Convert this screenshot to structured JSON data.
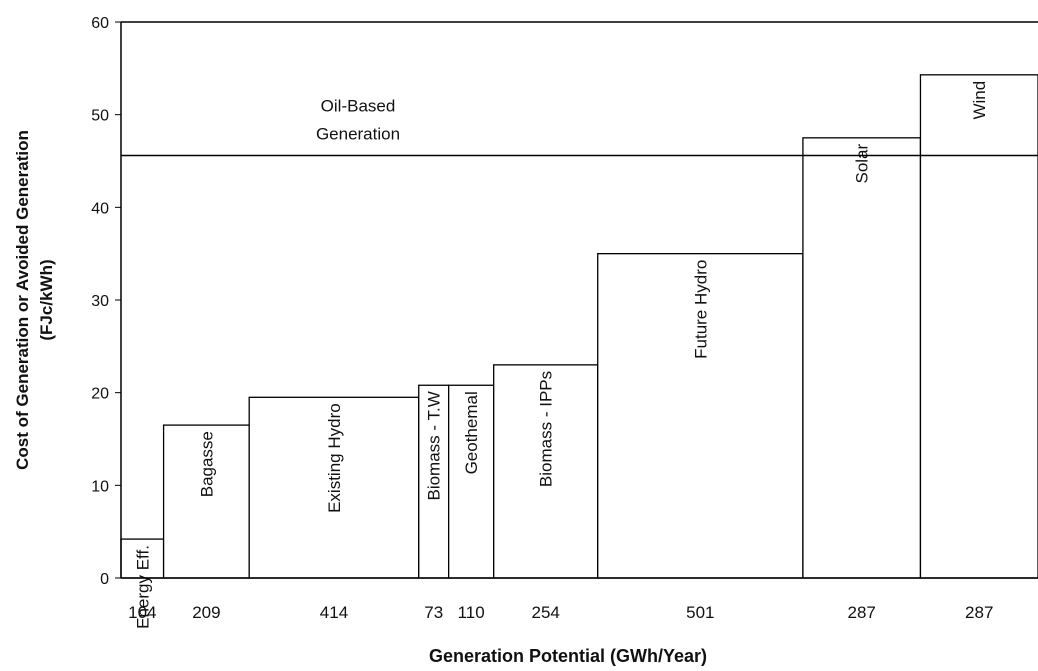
{
  "chart_data": {
    "type": "bar",
    "subtype": "variable-width supply curve",
    "ylabel_line1": "Cost of Generation or Avoided Generation",
    "ylabel_line2": "(FJc/kWh)",
    "xlabel": "Generation Potential  (GWh/Year)",
    "ylim": [
      0,
      60
    ],
    "yticks": [
      "0",
      "10",
      "20",
      "30",
      "40",
      "50",
      "60"
    ],
    "grid": false,
    "legend": "none",
    "bars": [
      {
        "label": "Energy Eff.",
        "width": 104,
        "width_label": "104",
        "value": 4.2
      },
      {
        "label": "Bagasse",
        "width": 209,
        "width_label": "209",
        "value": 16.5
      },
      {
        "label": "Existing Hydro",
        "width": 414,
        "width_label": "414",
        "value": 19.5
      },
      {
        "label": "Biomass - T.W",
        "width": 73,
        "width_label": "73",
        "value": 20.8
      },
      {
        "label": "Geothemal",
        "width": 110,
        "width_label": "110",
        "value": 20.8
      },
      {
        "label": "Biomass - IPPs",
        "width": 254,
        "width_label": "254",
        "value": 23
      },
      {
        "label": "Future Hydro",
        "width": 501,
        "width_label": "501",
        "value": 35
      },
      {
        "label": "Solar",
        "width": 287,
        "width_label": "287",
        "value": 47.5
      },
      {
        "label": "Wind",
        "width": 287,
        "width_label": "287",
        "value": 54.3
      }
    ],
    "reference_line": {
      "label_line1": "Oil-Based",
      "label_line2": "Generation",
      "value": 45.6
    }
  }
}
